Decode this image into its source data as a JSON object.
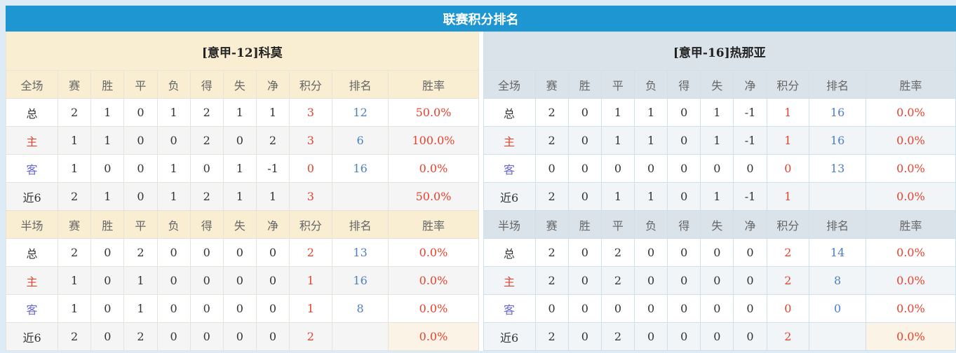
{
  "title": "联赛积分排名",
  "colors": {
    "title_bar": "#1e96d2",
    "left_header_bg": "#f9edd2",
    "right_header_bg": "#dbe3ea",
    "points_red": "#e3432e",
    "rank_blue": "#4d7fbf",
    "away_label_blue": "#6a6acf"
  },
  "teams": [
    {
      "name": "[意甲-12]科莫",
      "full": {
        "header": [
          "全场",
          "赛",
          "胜",
          "平",
          "负",
          "得",
          "失",
          "净",
          "积分",
          "排名",
          "胜率"
        ],
        "rows": [
          {
            "label": "总",
            "label_color": "dark",
            "values": [
              "2",
              "1",
              "0",
              "1",
              "2",
              "1",
              "1"
            ],
            "points": "3",
            "rank": "12",
            "winrate": "50.0%"
          },
          {
            "label": "主",
            "label_color": "red",
            "values": [
              "1",
              "1",
              "0",
              "0",
              "2",
              "0",
              "2"
            ],
            "points": "3",
            "rank": "6",
            "winrate": "100.0%"
          },
          {
            "label": "客",
            "label_color": "blue",
            "values": [
              "1",
              "0",
              "0",
              "1",
              "0",
              "1",
              "-1"
            ],
            "points": "0",
            "rank": "16",
            "winrate": "0.0%"
          },
          {
            "label": "近6",
            "label_color": "dark",
            "values": [
              "2",
              "1",
              "0",
              "1",
              "2",
              "1",
              "1"
            ],
            "points": "3",
            "rank": "",
            "winrate": "50.0%"
          }
        ]
      },
      "half": {
        "header": [
          "半场",
          "赛",
          "胜",
          "平",
          "负",
          "得",
          "失",
          "净",
          "积分",
          "排名",
          "胜率"
        ],
        "rows": [
          {
            "label": "总",
            "label_color": "dark",
            "values": [
              "2",
              "0",
              "2",
              "0",
              "0",
              "0",
              "0"
            ],
            "points": "2",
            "rank": "13",
            "winrate": "0.0%"
          },
          {
            "label": "主",
            "label_color": "red",
            "values": [
              "1",
              "0",
              "1",
              "0",
              "0",
              "0",
              "0"
            ],
            "points": "1",
            "rank": "16",
            "winrate": "0.0%"
          },
          {
            "label": "客",
            "label_color": "blue",
            "values": [
              "1",
              "0",
              "1",
              "0",
              "0",
              "0",
              "0"
            ],
            "points": "1",
            "rank": "8",
            "winrate": "0.0%"
          },
          {
            "label": "近6",
            "label_color": "dark",
            "values": [
              "2",
              "0",
              "2",
              "0",
              "0",
              "0",
              "0"
            ],
            "points": "2",
            "rank": "",
            "winrate": "0.0%"
          }
        ]
      }
    },
    {
      "name": "[意甲-16]热那亚",
      "full": {
        "header": [
          "全场",
          "赛",
          "胜",
          "平",
          "负",
          "得",
          "失",
          "净",
          "积分",
          "排名",
          "胜率"
        ],
        "rows": [
          {
            "label": "总",
            "label_color": "dark",
            "values": [
              "2",
              "0",
              "1",
              "1",
              "0",
              "1",
              "-1"
            ],
            "points": "1",
            "rank": "16",
            "winrate": "0.0%"
          },
          {
            "label": "主",
            "label_color": "red",
            "values": [
              "2",
              "0",
              "1",
              "1",
              "0",
              "1",
              "-1"
            ],
            "points": "1",
            "rank": "16",
            "winrate": "0.0%"
          },
          {
            "label": "客",
            "label_color": "blue",
            "values": [
              "0",
              "0",
              "0",
              "0",
              "0",
              "0",
              "0"
            ],
            "points": "0",
            "rank": "13",
            "winrate": "0.0%"
          },
          {
            "label": "近6",
            "label_color": "dark",
            "values": [
              "2",
              "0",
              "1",
              "1",
              "0",
              "1",
              "-1"
            ],
            "points": "1",
            "rank": "",
            "winrate": "0.0%"
          }
        ]
      },
      "half": {
        "header": [
          "半场",
          "赛",
          "胜",
          "平",
          "负",
          "得",
          "失",
          "净",
          "积分",
          "排名",
          "胜率"
        ],
        "rows": [
          {
            "label": "总",
            "label_color": "dark",
            "values": [
              "2",
              "0",
              "2",
              "0",
              "0",
              "0",
              "0"
            ],
            "points": "2",
            "rank": "14",
            "winrate": "0.0%"
          },
          {
            "label": "主",
            "label_color": "red",
            "values": [
              "2",
              "0",
              "2",
              "0",
              "0",
              "0",
              "0"
            ],
            "points": "2",
            "rank": "8",
            "winrate": "0.0%"
          },
          {
            "label": "客",
            "label_color": "blue",
            "values": [
              "0",
              "0",
              "0",
              "0",
              "0",
              "0",
              "0"
            ],
            "points": "0",
            "rank": "0",
            "winrate": "0.0%"
          },
          {
            "label": "近6",
            "label_color": "dark",
            "values": [
              "2",
              "0",
              "2",
              "0",
              "0",
              "0",
              "0"
            ],
            "points": "2",
            "rank": "",
            "winrate": "0.0%"
          }
        ]
      }
    }
  ]
}
